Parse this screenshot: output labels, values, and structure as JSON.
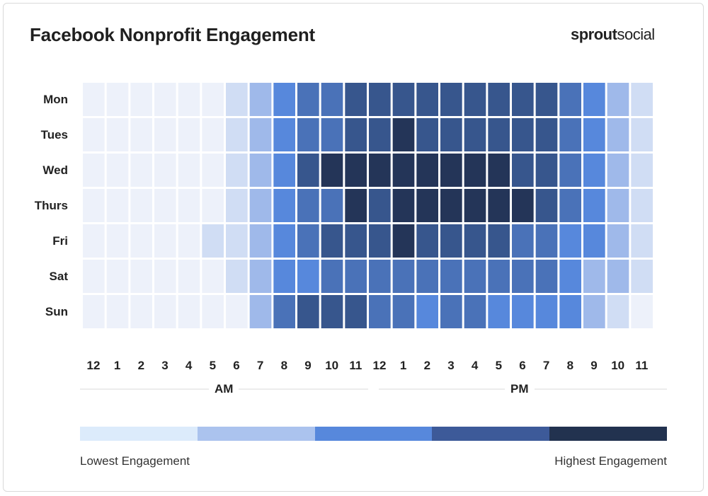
{
  "title": "Facebook Nonprofit Engagement",
  "logo": {
    "bold": "sprout",
    "light": "social"
  },
  "chart_data": {
    "type": "heatmap",
    "title": "Facebook Nonprofit Engagement",
    "rows": [
      "Mon",
      "Tues",
      "Wed",
      "Thurs",
      "Fri",
      "Sat",
      "Sun"
    ],
    "columns": [
      "12",
      "1",
      "2",
      "3",
      "4",
      "5",
      "6",
      "7",
      "8",
      "9",
      "10",
      "11",
      "12",
      "1",
      "2",
      "3",
      "4",
      "5",
      "6",
      "7",
      "8",
      "9",
      "10",
      "11"
    ],
    "column_groups": [
      {
        "label": "AM",
        "span": 12
      },
      {
        "label": "PM",
        "span": 12
      }
    ],
    "value_scale": "relative engagement level 0 (lowest) to 6 (highest)",
    "values": [
      [
        0,
        0,
        0,
        0,
        0,
        0,
        1,
        2,
        3,
        4,
        4,
        5,
        5,
        5,
        5,
        5,
        5,
        5,
        5,
        5,
        4,
        3,
        2,
        1
      ],
      [
        0,
        0,
        0,
        0,
        0,
        0,
        1,
        2,
        3,
        4,
        4,
        5,
        5,
        6,
        5,
        5,
        5,
        5,
        5,
        5,
        4,
        3,
        2,
        1
      ],
      [
        0,
        0,
        0,
        0,
        0,
        0,
        1,
        2,
        3,
        5,
        6,
        6,
        6,
        6,
        6,
        6,
        6,
        6,
        5,
        5,
        4,
        3,
        2,
        1
      ],
      [
        0,
        0,
        0,
        0,
        0,
        0,
        1,
        2,
        3,
        4,
        4,
        6,
        5,
        6,
        6,
        6,
        6,
        6,
        6,
        5,
        4,
        3,
        2,
        1
      ],
      [
        0,
        0,
        0,
        0,
        0,
        1,
        1,
        2,
        3,
        4,
        5,
        5,
        5,
        6,
        5,
        5,
        5,
        5,
        4,
        4,
        3,
        3,
        2,
        1
      ],
      [
        0,
        0,
        0,
        0,
        0,
        0,
        1,
        2,
        3,
        3,
        4,
        4,
        4,
        4,
        4,
        4,
        4,
        4,
        4,
        4,
        3,
        2,
        2,
        1
      ],
      [
        0,
        0,
        0,
        0,
        0,
        0,
        0,
        2,
        4,
        5,
        5,
        5,
        4,
        4,
        3,
        4,
        4,
        3,
        3,
        3,
        3,
        2,
        1,
        0
      ]
    ],
    "cell_colors": [
      "#edf1fa",
      "#d0ddf4",
      "#9fb9ea",
      "#5788dc",
      "#4a72b8",
      "#37568d",
      "#243558"
    ],
    "legend": {
      "low_label": "Lowest Engagement",
      "high_label": "Highest Engagement",
      "colors": [
        "#dcebfb",
        "#abc3ee",
        "#5788dc",
        "#3d5a99",
        "#22324f"
      ],
      "placement": "bottom"
    }
  }
}
